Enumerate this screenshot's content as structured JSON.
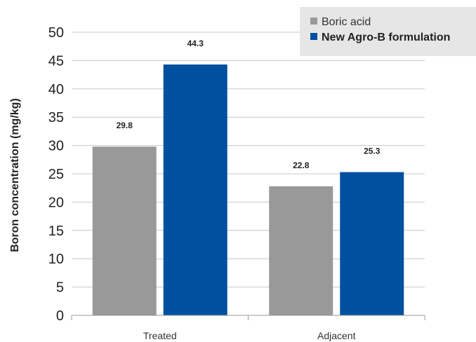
{
  "chart_data": {
    "type": "bar",
    "categories": [
      "Treated",
      "Adjacent"
    ],
    "series": [
      {
        "name": "Boric acid",
        "values": [
          29.8,
          22.8
        ],
        "color": "#999999"
      },
      {
        "name": "New Agro-B formulation",
        "values": [
          44.3,
          25.3
        ],
        "color": "#0050a0"
      }
    ],
    "data_labels": [
      [
        "29.8",
        "22.8"
      ],
      [
        "44.3",
        "25.3"
      ]
    ],
    "title": "",
    "xlabel": "",
    "ylabel": "Boron concentration (mg/kg)",
    "ylim": [
      0,
      50
    ],
    "yticks": [
      0,
      5,
      10,
      15,
      20,
      25,
      30,
      35,
      40,
      45,
      50
    ],
    "grid": true,
    "legend_position": "top-right"
  }
}
